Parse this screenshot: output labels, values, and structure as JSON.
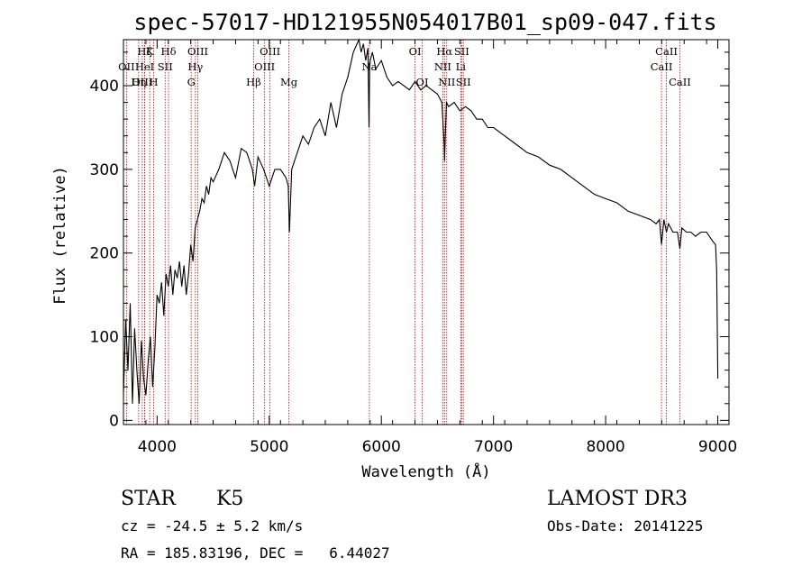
{
  "chart_data": {
    "type": "line",
    "title": "spec-57017-HD121955N054017B01_sp09-047.fits",
    "xlabel": "Wavelength (Å)",
    "ylabel": "Flux (relative)",
    "xlim": [
      3700,
      9100
    ],
    "ylim": [
      -5,
      455
    ],
    "x_ticks": [
      {
        "value": 4000,
        "label": "4000"
      },
      {
        "value": 5000,
        "label": "5000"
      },
      {
        "value": 6000,
        "label": "6000"
      },
      {
        "value": 7000,
        "label": "7000"
      },
      {
        "value": 8000,
        "label": "8000"
      },
      {
        "value": 9000,
        "label": "9000"
      }
    ],
    "y_ticks": [
      {
        "value": 0,
        "label": "0"
      },
      {
        "value": 100,
        "label": "100"
      },
      {
        "value": 200,
        "label": "200"
      },
      {
        "value": 300,
        "label": "300"
      },
      {
        "value": 400,
        "label": "400"
      }
    ],
    "x_minor_step": 200,
    "y_minor_step": 20,
    "grid": false,
    "series": [
      {
        "color": "#000000",
        "x": [
          3700,
          3720,
          3740,
          3760,
          3780,
          3800,
          3820,
          3840,
          3860,
          3880,
          3900,
          3920,
          3940,
          3960,
          3980,
          4000,
          4020,
          4040,
          4060,
          4080,
          4100,
          4120,
          4140,
          4160,
          4180,
          4200,
          4220,
          4240,
          4260,
          4280,
          4300,
          4320,
          4340,
          4360,
          4380,
          4400,
          4420,
          4440,
          4460,
          4480,
          4500,
          4550,
          4600,
          4650,
          4700,
          4750,
          4800,
          4850,
          4870,
          4900,
          4950,
          5000,
          5050,
          5100,
          5150,
          5170,
          5180,
          5200,
          5250,
          5300,
          5350,
          5400,
          5450,
          5500,
          5550,
          5600,
          5650,
          5700,
          5750,
          5800,
          5820,
          5840,
          5860,
          5880,
          5890,
          5895,
          5900,
          5920,
          5950,
          6000,
          6050,
          6100,
          6150,
          6200,
          6250,
          6300,
          6350,
          6400,
          6450,
          6500,
          6540,
          6560,
          6563,
          6580,
          6600,
          6650,
          6700,
          6750,
          6800,
          6850,
          6900,
          6950,
          7000,
          7100,
          7200,
          7300,
          7400,
          7500,
          7600,
          7700,
          7800,
          7900,
          8000,
          8100,
          8200,
          8300,
          8400,
          8450,
          8480,
          8498,
          8520,
          8542,
          8560,
          8600,
          8640,
          8662,
          8680,
          8720,
          8760,
          8800,
          8850,
          8900,
          8950,
          8980,
          8990,
          9000
        ],
        "y": [
          30,
          120,
          60,
          140,
          20,
          110,
          60,
          20,
          95,
          50,
          30,
          70,
          100,
          40,
          85,
          150,
          140,
          165,
          125,
          175,
          160,
          185,
          150,
          180,
          170,
          190,
          160,
          185,
          150,
          175,
          210,
          190,
          230,
          240,
          250,
          265,
          260,
          280,
          270,
          290,
          285,
          300,
          320,
          310,
          290,
          325,
          320,
          300,
          280,
          315,
          300,
          280,
          300,
          300,
          290,
          280,
          225,
          300,
          320,
          340,
          330,
          350,
          360,
          340,
          380,
          350,
          390,
          410,
          440,
          455,
          440,
          450,
          430,
          445,
          350,
          420,
          430,
          440,
          420,
          430,
          410,
          400,
          405,
          400,
          395,
          405,
          395,
          400,
          395,
          390,
          380,
          330,
          310,
          380,
          375,
          380,
          370,
          375,
          370,
          360,
          360,
          350,
          350,
          340,
          330,
          320,
          315,
          305,
          300,
          290,
          280,
          270,
          265,
          260,
          250,
          245,
          240,
          235,
          240,
          210,
          240,
          225,
          235,
          225,
          225,
          205,
          230,
          225,
          225,
          220,
          225,
          225,
          215,
          210,
          180,
          50
        ]
      }
    ],
    "spectral_lines": [
      {
        "wavelength": 3727,
        "label": "OII",
        "row": 1
      },
      {
        "wavelength": 3835,
        "label": "Hη",
        "row": 2
      },
      {
        "wavelength": 3868,
        "label": "OIII",
        "row": 2
      },
      {
        "wavelength": 3889,
        "label": "Hζ",
        "row": 0
      },
      {
        "wavelength": 3889,
        "label": "HeI",
        "row": 1
      },
      {
        "wavelength": 3934,
        "label": "K",
        "row": 0
      },
      {
        "wavelength": 3969,
        "label": "H",
        "row": 2
      },
      {
        "wavelength": 4072,
        "label": "SII",
        "row": 1
      },
      {
        "wavelength": 4102,
        "label": "Hδ",
        "row": 0
      },
      {
        "wavelength": 4304,
        "label": "G",
        "row": 2
      },
      {
        "wavelength": 4341,
        "label": "Hγ",
        "row": 1
      },
      {
        "wavelength": 4363,
        "label": "OIII",
        "row": 0
      },
      {
        "wavelength": 4861,
        "label": "Hβ",
        "row": 2
      },
      {
        "wavelength": 4959,
        "label": "OIII",
        "row": 1
      },
      {
        "wavelength": 5007,
        "label": "OIII",
        "row": 0
      },
      {
        "wavelength": 5175,
        "label": "Mg",
        "row": 2
      },
      {
        "wavelength": 5893,
        "label": "Na",
        "row": 1
      },
      {
        "wavelength": 6300,
        "label": "OI",
        "row": 0
      },
      {
        "wavelength": 6364,
        "label": "OI",
        "row": 2
      },
      {
        "wavelength": 6548,
        "label": "NII",
        "row": 1
      },
      {
        "wavelength": 6563,
        "label": "Hα",
        "row": 0
      },
      {
        "wavelength": 6583,
        "label": "NII",
        "row": 2
      },
      {
        "wavelength": 6708,
        "label": "Li",
        "row": 1
      },
      {
        "wavelength": 6716,
        "label": "SII",
        "row": 0
      },
      {
        "wavelength": 6731,
        "label": "SII",
        "row": 2
      },
      {
        "wavelength": 8498,
        "label": "CaII",
        "row": 1
      },
      {
        "wavelength": 8542,
        "label": "CaII",
        "row": 0
      },
      {
        "wavelength": 8662,
        "label": "CaII",
        "row": 2
      }
    ],
    "line_marker_color": "#cc0000"
  },
  "info": {
    "class": "STAR",
    "subclass": "K5",
    "survey": "LAMOST DR3",
    "cz": "cz = -24.5 ± 5.2 km/s",
    "obs_date": "Obs-Date: 20141225",
    "coords": "RA = 185.83196, DEC =   6.44027"
  }
}
